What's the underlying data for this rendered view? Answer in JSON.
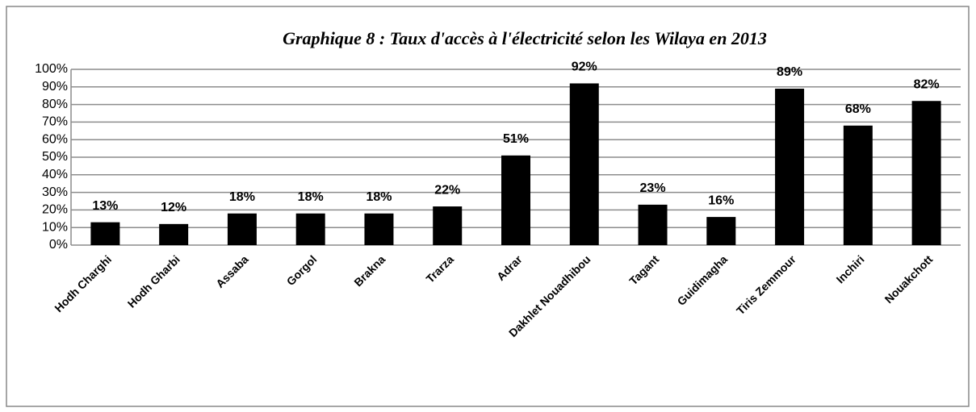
{
  "chart_data": {
    "type": "bar",
    "title": "Graphique 8 : Taux d'accès à l'électricité selon les Wilaya en 2013",
    "categories": [
      "Hodh Charghi",
      "Hodh Gharbi",
      "Assaba",
      "Gorgol",
      "Brakna",
      "Trarza",
      "Adrar",
      "Dakhlet  Nouadhibou",
      "Tagant",
      "Guidimagha",
      "Tiris Zemmour",
      "Inchiri",
      "Nouakchott"
    ],
    "values": [
      13,
      12,
      18,
      18,
      18,
      22,
      51,
      92,
      23,
      16,
      89,
      68,
      82
    ],
    "value_labels": [
      "13%",
      "12%",
      "18%",
      "18%",
      "18%",
      "22%",
      "51%",
      "92%",
      "23%",
      "16%",
      "89%",
      "68%",
      "82%"
    ],
    "color": "#000000",
    "ylim": [
      0,
      100
    ],
    "yticks": [
      {
        "value": 0,
        "label": "0%"
      },
      {
        "value": 10,
        "label": "10%"
      },
      {
        "value": 20,
        "label": "20%"
      },
      {
        "value": 30,
        "label": "30%"
      },
      {
        "value": 40,
        "label": "40%"
      },
      {
        "value": 50,
        "label": "50%"
      },
      {
        "value": 60,
        "label": "60%"
      },
      {
        "value": 70,
        "label": "70%"
      },
      {
        "value": 80,
        "label": "80%"
      },
      {
        "value": 90,
        "label": "90%"
      },
      {
        "value": 100,
        "label": "100%"
      }
    ],
    "grid": true
  }
}
